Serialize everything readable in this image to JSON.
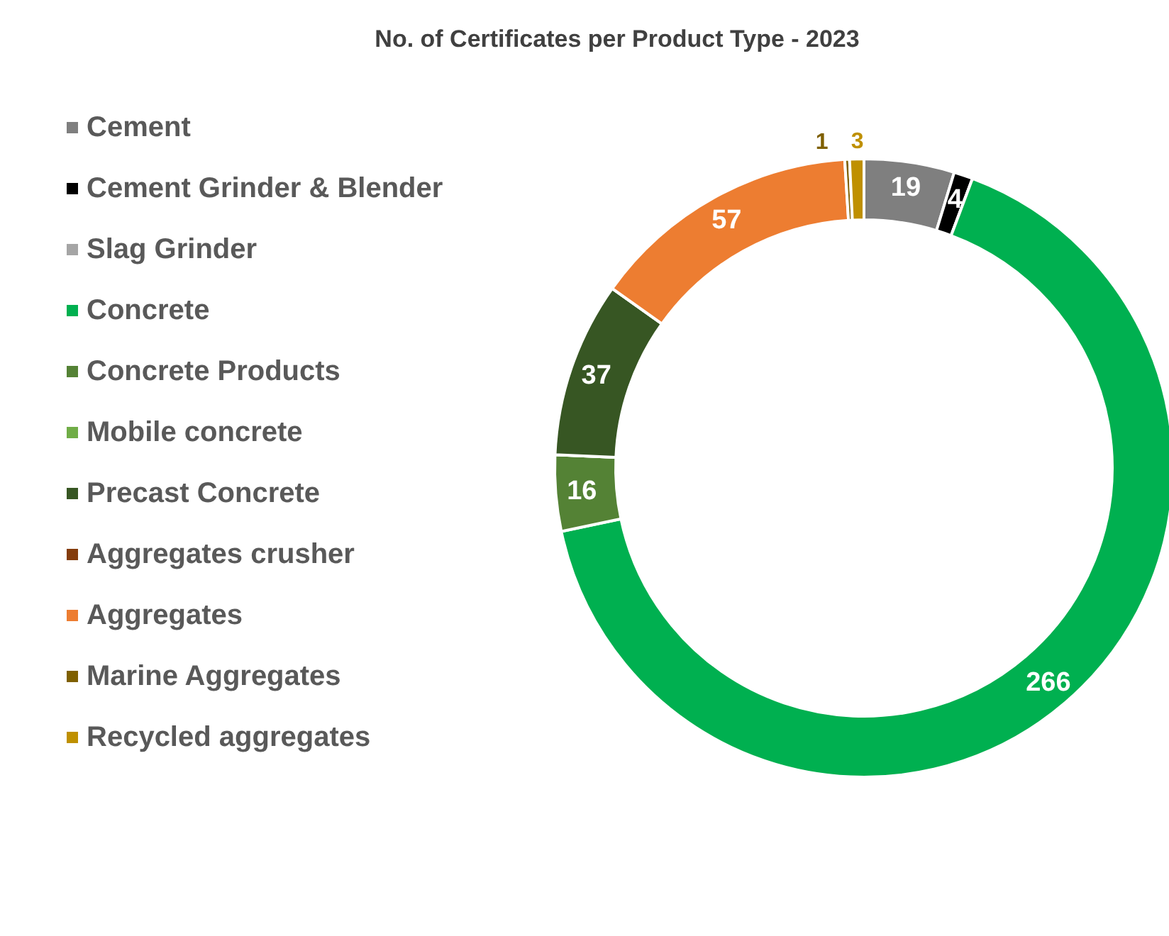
{
  "chart_data": {
    "type": "donut",
    "title": "No. of Certificates per Product Type - 2023",
    "categories": [
      "Cement",
      "Cement Grinder & Blender",
      "Slag Grinder",
      "Concrete",
      "Concrete Products",
      "Mobile concrete",
      "Precast Concrete",
      "Aggregates crusher",
      "Aggregates",
      "Marine Aggregates",
      "Recycled aggregates"
    ],
    "values": [
      19,
      4,
      0,
      266,
      16,
      0,
      37,
      0,
      57,
      1,
      3
    ],
    "value_labels": [
      "19",
      "4",
      null,
      "266",
      "16",
      null,
      "37",
      null,
      "57",
      "1",
      "3"
    ],
    "colors": [
      "#7f7f7f",
      "#000000",
      "#a5a5a5",
      "#00b050",
      "#548235",
      "#70ad47",
      "#375623",
      "#843c0c",
      "#ed7d31",
      "#7f6000",
      "#bf9000"
    ],
    "legend": "left"
  }
}
